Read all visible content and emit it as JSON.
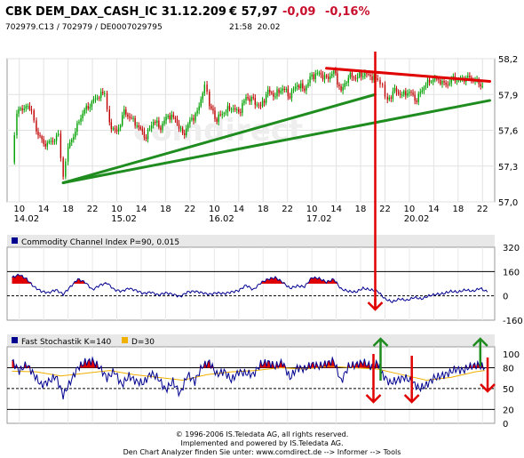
{
  "header": {
    "title": "CBK DEM_DAX_CASH_IC 31.12.209",
    "price": "€ 57,97",
    "change": "-0,09",
    "change_pct": "-0,16%",
    "ids": "702979.C13  /  702979  /  DE0007029795",
    "time": "21:58",
    "date": "20.02"
  },
  "watermark": "comdirect",
  "colors": {
    "up": "#00a000",
    "down": "#c00000",
    "trend": "#1e8c1e",
    "annotation": "#e00000",
    "arrow_up": "#1e8c1e",
    "area_red": "#e00000",
    "line_blue": "#000090",
    "line_orange": "#f0b000",
    "panel_bar": "#e8e8e8"
  },
  "footer": {
    "line1": "© 1996-2006 IS.Teledata AG, all rights reserved.",
    "line2": "Implemented and powered by IS.Teledata AG.",
    "line3": "Den Chart Analyzer finden Sie unter: www.comdirect.de --> Informer --> Tools"
  },
  "chart_data": [
    {
      "type": "line",
      "subtype": "intraday candlestick",
      "ylim": [
        57.0,
        58.2
      ],
      "yticks": [
        "58,2",
        "57,9",
        "57,6",
        "57,3",
        "57,0"
      ],
      "xtick_labels": [
        {
          "x": 0.3,
          "label": "10"
        },
        {
          "x": 1.3,
          "label": "14"
        },
        {
          "x": 2.3,
          "label": "18"
        },
        {
          "x": 3.3,
          "label": "22"
        },
        {
          "x": 4.3,
          "label": "10"
        },
        {
          "x": 5.3,
          "label": "14"
        },
        {
          "x": 6.3,
          "label": "18"
        },
        {
          "x": 7.3,
          "label": "22"
        },
        {
          "x": 8.3,
          "label": "10"
        },
        {
          "x": 9.3,
          "label": "14"
        },
        {
          "x": 10.3,
          "label": "18"
        },
        {
          "x": 11.3,
          "label": "22"
        },
        {
          "x": 12.3,
          "label": "10"
        },
        {
          "x": 13.3,
          "label": "14"
        },
        {
          "x": 14.3,
          "label": "18"
        },
        {
          "x": 15.3,
          "label": "22"
        },
        {
          "x": 16.3,
          "label": "10"
        },
        {
          "x": 17.3,
          "label": "14"
        },
        {
          "x": 18.3,
          "label": "18"
        },
        {
          "x": 19.3,
          "label": "22"
        }
      ],
      "date_labels": [
        {
          "x": 0.0,
          "label": "14.02"
        },
        {
          "x": 4.0,
          "label": "15.02"
        },
        {
          "x": 8.0,
          "label": "16.02"
        },
        {
          "x": 12.0,
          "label": "17.02"
        },
        {
          "x": 16.0,
          "label": "20.02"
        }
      ],
      "x_range": [
        -0.2,
        19.8
      ],
      "close_series": [
        [
          0.0,
          57.33
        ],
        [
          0.2,
          57.75
        ],
        [
          0.5,
          57.8
        ],
        [
          0.8,
          57.78
        ],
        [
          1.0,
          57.6
        ],
        [
          1.3,
          57.48
        ],
        [
          1.6,
          57.5
        ],
        [
          1.9,
          57.55
        ],
        [
          2.1,
          57.2
        ],
        [
          2.3,
          57.45
        ],
        [
          2.6,
          57.6
        ],
        [
          2.9,
          57.75
        ],
        [
          3.2,
          57.82
        ],
        [
          3.5,
          57.88
        ],
        [
          3.8,
          57.92
        ],
        [
          4.0,
          57.65
        ],
        [
          4.3,
          57.58
        ],
        [
          4.6,
          57.75
        ],
        [
          4.9,
          57.7
        ],
        [
          5.2,
          57.62
        ],
        [
          5.5,
          57.55
        ],
        [
          5.8,
          57.68
        ],
        [
          6.1,
          57.63
        ],
        [
          6.4,
          57.72
        ],
        [
          6.7,
          57.7
        ],
        [
          7.0,
          57.55
        ],
        [
          7.3,
          57.68
        ],
        [
          7.6,
          57.74
        ],
        [
          7.9,
          57.99
        ],
        [
          8.1,
          57.8
        ],
        [
          8.4,
          57.7
        ],
        [
          8.7,
          57.75
        ],
        [
          9.0,
          57.8
        ],
        [
          9.3,
          57.74
        ],
        [
          9.6,
          57.88
        ],
        [
          9.9,
          57.84
        ],
        [
          10.2,
          57.8
        ],
        [
          10.5,
          57.92
        ],
        [
          10.8,
          57.9
        ],
        [
          11.1,
          57.95
        ],
        [
          11.4,
          57.9
        ],
        [
          11.7,
          57.98
        ],
        [
          12.0,
          57.95
        ],
        [
          12.3,
          58.05
        ],
        [
          12.6,
          58.08
        ],
        [
          12.9,
          58.02
        ],
        [
          13.2,
          58.1
        ],
        [
          13.5,
          57.92
        ],
        [
          13.8,
          58.06
        ],
        [
          14.1,
          58.04
        ],
        [
          14.4,
          58.08
        ],
        [
          14.7,
          58.05
        ],
        [
          15.0,
          58.03
        ],
        [
          15.2,
          57.96
        ],
        [
          15.4,
          57.85
        ],
        [
          15.7,
          57.93
        ],
        [
          16.0,
          57.9
        ],
        [
          16.3,
          57.92
        ],
        [
          16.6,
          57.86
        ],
        [
          16.9,
          57.97
        ],
        [
          17.2,
          58.03
        ],
        [
          17.5,
          58.02
        ],
        [
          17.8,
          57.98
        ],
        [
          18.1,
          58.03
        ],
        [
          18.4,
          58.02
        ],
        [
          18.7,
          58.04
        ],
        [
          19.0,
          58.02
        ],
        [
          19.3,
          57.97
        ]
      ],
      "trendlines": [
        {
          "color": "trend",
          "from": [
            2.1,
            57.16
          ],
          "to": [
            14.9,
            57.9
          ]
        },
        {
          "color": "trend",
          "from": [
            2.1,
            57.16
          ],
          "to": [
            19.6,
            57.85
          ]
        },
        {
          "color": "annotation",
          "from": [
            12.9,
            58.12
          ],
          "to": [
            19.6,
            58.01
          ]
        }
      ]
    },
    {
      "type": "area",
      "title": "Commodity Channel Index P=90, 0.015",
      "legend": [
        {
          "name": "Commodity Channel Index P=90, 0.015",
          "color": "line_blue"
        }
      ],
      "ylim": [
        -160,
        320
      ],
      "yticks": [
        "320",
        "160",
        "0",
        "-160"
      ],
      "hlines": [
        160,
        0
      ],
      "fill_above": 80,
      "values": [
        [
          0.0,
          120
        ],
        [
          0.3,
          140
        ],
        [
          0.6,
          110
        ],
        [
          0.9,
          60
        ],
        [
          1.2,
          30
        ],
        [
          1.5,
          20
        ],
        [
          1.8,
          40
        ],
        [
          2.1,
          10
        ],
        [
          2.4,
          60
        ],
        [
          2.7,
          110
        ],
        [
          3.0,
          90
        ],
        [
          3.3,
          40
        ],
        [
          3.6,
          70
        ],
        [
          3.9,
          85
        ],
        [
          4.2,
          40
        ],
        [
          4.5,
          30
        ],
        [
          4.8,
          50
        ],
        [
          5.1,
          35
        ],
        [
          5.4,
          15
        ],
        [
          5.7,
          25
        ],
        [
          6.0,
          5
        ],
        [
          6.3,
          20
        ],
        [
          6.6,
          10
        ],
        [
          6.9,
          -5
        ],
        [
          7.2,
          25
        ],
        [
          7.5,
          30
        ],
        [
          7.8,
          20
        ],
        [
          8.1,
          10
        ],
        [
          8.4,
          20
        ],
        [
          8.7,
          15
        ],
        [
          9.0,
          25
        ],
        [
          9.3,
          35
        ],
        [
          9.6,
          70
        ],
        [
          9.9,
          40
        ],
        [
          10.2,
          85
        ],
        [
          10.5,
          110
        ],
        [
          10.8,
          120
        ],
        [
          11.1,
          90
        ],
        [
          11.4,
          50
        ],
        [
          11.7,
          65
        ],
        [
          12.0,
          60
        ],
        [
          12.3,
          120
        ],
        [
          12.6,
          115
        ],
        [
          12.9,
          90
        ],
        [
          13.2,
          110
        ],
        [
          13.5,
          45
        ],
        [
          13.8,
          30
        ],
        [
          14.1,
          25
        ],
        [
          14.4,
          50
        ],
        [
          14.7,
          40
        ],
        [
          15.0,
          30
        ],
        [
          15.3,
          -20
        ],
        [
          15.6,
          -40
        ],
        [
          15.9,
          -20
        ],
        [
          16.2,
          -30
        ],
        [
          16.5,
          -10
        ],
        [
          16.8,
          -20
        ],
        [
          17.1,
          0
        ],
        [
          17.4,
          10
        ],
        [
          17.7,
          15
        ],
        [
          18.0,
          30
        ],
        [
          18.3,
          25
        ],
        [
          18.6,
          40
        ],
        [
          18.9,
          30
        ],
        [
          19.2,
          50
        ],
        [
          19.5,
          25
        ]
      ]
    },
    {
      "type": "area",
      "title": "Fast Stochastik K=140   D=30",
      "legend": [
        {
          "name": "Fast Stochastik K=140",
          "color": "line_blue"
        },
        {
          "name": "D=30",
          "color": "line_orange"
        }
      ],
      "ylim": [
        0,
        110
      ],
      "yticks": [
        "100",
        "80",
        "50",
        "20",
        "0"
      ],
      "hlines": [
        80,
        50,
        20
      ],
      "fill_above": 80,
      "k_values": [
        [
          0.0,
          90
        ],
        [
          0.3,
          75
        ],
        [
          0.6,
          85
        ],
        [
          0.9,
          70
        ],
        [
          1.2,
          55
        ],
        [
          1.5,
          60
        ],
        [
          1.8,
          68
        ],
        [
          2.1,
          40
        ],
        [
          2.4,
          60
        ],
        [
          2.7,
          80
        ],
        [
          3.0,
          88
        ],
        [
          3.3,
          90
        ],
        [
          3.6,
          80
        ],
        [
          3.9,
          65
        ],
        [
          4.2,
          75
        ],
        [
          4.5,
          55
        ],
        [
          4.8,
          68
        ],
        [
          5.1,
          60
        ],
        [
          5.4,
          58
        ],
        [
          5.7,
          72
        ],
        [
          6.0,
          65
        ],
        [
          6.3,
          48
        ],
        [
          6.6,
          60
        ],
        [
          6.9,
          42
        ],
        [
          7.2,
          70
        ],
        [
          7.5,
          60
        ],
        [
          7.8,
          82
        ],
        [
          8.1,
          88
        ],
        [
          8.4,
          70
        ],
        [
          8.7,
          75
        ],
        [
          9.0,
          62
        ],
        [
          9.3,
          74
        ],
        [
          9.6,
          72
        ],
        [
          9.9,
          70
        ],
        [
          10.2,
          85
        ],
        [
          10.5,
          88
        ],
        [
          10.8,
          82
        ],
        [
          11.1,
          88
        ],
        [
          11.4,
          65
        ],
        [
          11.7,
          80
        ],
        [
          12.0,
          78
        ],
        [
          12.3,
          85
        ],
        [
          12.6,
          82
        ],
        [
          12.9,
          86
        ],
        [
          13.2,
          90
        ],
        [
          13.5,
          60
        ],
        [
          13.8,
          82
        ],
        [
          14.1,
          84
        ],
        [
          14.4,
          88
        ],
        [
          14.7,
          82
        ],
        [
          15.0,
          86
        ],
        [
          15.2,
          70
        ],
        [
          15.5,
          58
        ],
        [
          15.8,
          62
        ],
        [
          16.1,
          66
        ],
        [
          16.4,
          60
        ],
        [
          16.7,
          50
        ],
        [
          17.0,
          55
        ],
        [
          17.3,
          65
        ],
        [
          17.6,
          68
        ],
        [
          17.9,
          72
        ],
        [
          18.2,
          78
        ],
        [
          18.5,
          76
        ],
        [
          18.8,
          82
        ],
        [
          19.1,
          84
        ],
        [
          19.4,
          80
        ]
      ],
      "d_values": [
        [
          0.0,
          75
        ],
        [
          1.0,
          74
        ],
        [
          2.0,
          68
        ],
        [
          3.0,
          72
        ],
        [
          4.0,
          76
        ],
        [
          5.0,
          70
        ],
        [
          6.0,
          66
        ],
        [
          7.0,
          62
        ],
        [
          8.0,
          70
        ],
        [
          9.0,
          74
        ],
        [
          10.0,
          76
        ],
        [
          11.0,
          80
        ],
        [
          12.0,
          78
        ],
        [
          13.0,
          82
        ],
        [
          14.0,
          80
        ],
        [
          15.0,
          78
        ],
        [
          16.0,
          70
        ],
        [
          17.0,
          62
        ],
        [
          18.0,
          66
        ],
        [
          19.0,
          74
        ],
        [
          19.4,
          76
        ]
      ]
    }
  ],
  "annotations": {
    "vertical_line_x": 14.9,
    "down_arrows_x": [
      14.9,
      14.9,
      16.4,
      19.4
    ],
    "up_arrows_x": [
      14.9,
      19.1
    ]
  }
}
